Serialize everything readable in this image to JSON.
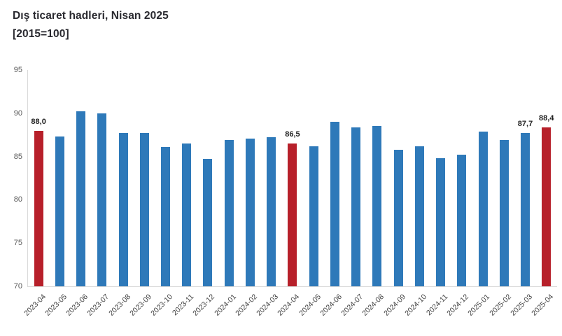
{
  "title": {
    "line1": "Dış ticaret hadleri, Nisan 2025",
    "line2": "[2015=100]"
  },
  "colors": {
    "bar_blue": "#2e79b9",
    "bar_red": "#b7202a",
    "axis_line": "#d9d9d9",
    "tick_text": "#595959",
    "xlabel_text": "#404040",
    "value_label_text": "#1f1f1f",
    "title_text": "#29292f"
  },
  "chart_data": {
    "type": "bar",
    "title": "Dış ticaret hadleri, Nisan 2025",
    "subtitle": "[2015=100]",
    "categories": [
      "2023-04",
      "2023-05",
      "2023-06",
      "2023-07",
      "2023-08",
      "2023-09",
      "2023-10",
      "2023-11",
      "2023-12",
      "2024-01",
      "2024-02",
      "2024-03",
      "2024-04",
      "2024-05",
      "2024-06",
      "2024-07",
      "2024-08",
      "2024-09",
      "2024-10",
      "2024-11",
      "2024-12",
      "2025-01",
      "2025-02",
      "2025-03",
      "2025-04"
    ],
    "values": [
      88.0,
      87.3,
      90.2,
      90.0,
      87.7,
      87.7,
      86.1,
      86.5,
      84.7,
      86.9,
      87.1,
      87.2,
      86.5,
      86.2,
      89.0,
      88.4,
      88.5,
      85.8,
      86.2,
      84.8,
      85.2,
      87.9,
      86.9,
      87.7,
      88.4
    ],
    "highlighted": [
      "2023-04",
      "2024-04",
      "2025-04"
    ],
    "data_labels": {
      "2023-04": "88,0",
      "2024-04": "86,5",
      "2025-03": "87,7",
      "2025-04": "88,4"
    },
    "xlabel": "",
    "ylabel": "",
    "ylim": [
      70,
      95
    ],
    "yticks": [
      70,
      75,
      80,
      85,
      90,
      95
    ],
    "grid": false,
    "legend": "none"
  }
}
